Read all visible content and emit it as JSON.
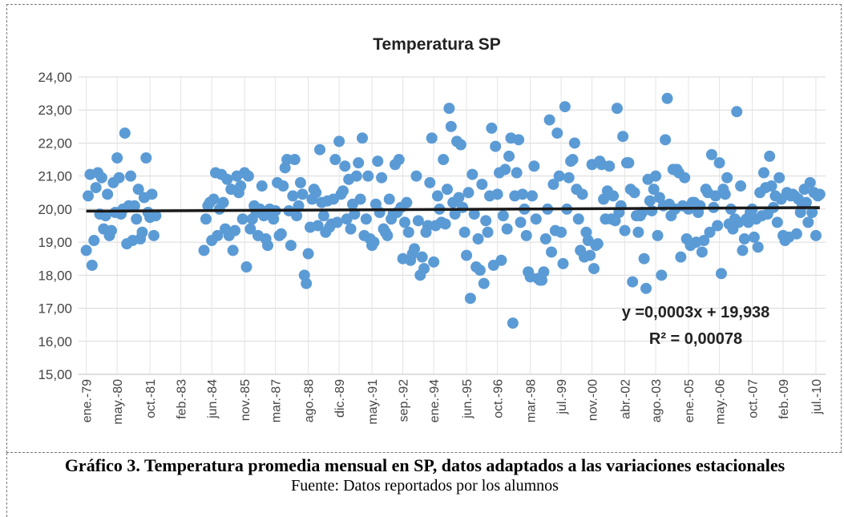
{
  "chart_data": {
    "type": "scatter",
    "title": "Temperatura SP",
    "color": "#5b9bd5",
    "x": [
      0,
      1,
      2,
      3,
      4,
      5,
      6,
      7,
      8,
      9,
      10,
      11,
      12,
      13,
      14,
      15,
      16,
      17,
      18,
      19,
      20,
      21,
      22,
      23,
      24,
      25,
      26,
      27,
      28,
      29,
      30,
      31,
      32,
      33,
      34,
      35,
      36,
      61,
      62,
      63,
      64,
      65,
      66,
      67,
      68,
      69,
      70,
      71,
      72,
      73,
      74,
      75,
      76,
      77,
      78,
      79,
      80,
      81,
      82,
      83,
      84,
      85,
      86,
      87,
      88,
      89,
      90,
      91,
      92,
      93,
      94,
      95,
      96,
      97,
      98,
      99,
      100,
      101,
      102,
      103,
      104,
      105,
      106,
      107,
      108,
      109,
      110,
      111,
      112,
      113,
      114,
      115,
      116,
      117,
      118,
      119,
      120,
      121,
      122,
      123,
      124,
      125,
      126,
      127,
      128,
      129,
      130,
      131,
      132,
      133,
      134,
      135,
      136,
      137,
      138,
      139,
      140,
      141,
      142,
      143,
      144,
      145,
      146,
      147,
      148,
      149,
      150,
      151,
      152,
      153,
      154,
      155,
      156,
      157,
      158,
      159,
      160,
      161,
      162,
      163,
      164,
      165,
      166,
      167,
      168,
      169,
      170,
      171,
      172,
      173,
      174,
      175,
      176,
      177,
      178,
      179,
      180,
      181,
      182,
      183,
      184,
      185,
      186,
      187,
      188,
      189,
      190,
      191,
      192,
      193,
      194,
      195,
      196,
      197,
      198,
      199,
      200,
      201,
      202,
      203,
      204,
      205,
      206,
      207,
      208,
      209,
      210,
      211,
      212,
      213,
      214,
      215,
      216,
      217,
      218,
      219,
      220,
      221,
      222,
      223,
      224,
      225,
      226,
      227,
      228,
      229,
      230,
      231,
      232,
      233,
      234,
      235,
      236,
      237,
      238,
      239,
      240,
      241,
      242,
      243,
      244,
      245,
      246,
      247,
      248,
      249,
      250,
      251,
      252,
      253,
      254,
      255,
      256,
      257,
      258,
      259,
      260,
      261,
      262,
      263,
      264,
      265,
      266,
      267,
      268,
      269,
      270,
      271,
      272,
      273,
      274,
      275,
      276,
      277,
      278,
      279,
      280,
      281,
      282,
      283,
      284,
      285,
      286,
      287,
      288,
      289,
      290,
      291,
      292,
      293,
      294,
      295,
      296,
      297,
      298,
      299,
      300,
      301,
      302,
      303,
      304,
      305,
      306,
      307,
      308,
      309,
      310,
      311,
      312,
      313,
      314,
      315,
      316,
      317,
      318,
      319,
      320,
      321,
      322,
      323,
      324,
      325,
      326,
      327,
      328,
      329,
      330,
      331,
      332,
      333,
      334,
      335,
      336,
      337,
      338,
      339,
      340,
      341,
      342,
      343,
      344,
      345,
      346,
      347,
      348,
      349,
      350,
      351,
      352,
      353,
      354,
      355,
      356,
      357,
      358,
      359,
      360,
      361,
      362,
      363,
      364,
      365,
      366,
      367,
      368,
      369,
      370,
      371,
      372,
      373,
      374,
      375,
      376,
      377,
      378,
      379,
      380
    ],
    "values": [
      18.75,
      20.4,
      21.05,
      18.3,
      19.05,
      20.65,
      21.1,
      19.85,
      20.95,
      19.4,
      19.8,
      20.45,
      19.2,
      19.35,
      20.8,
      19.9,
      21.55,
      20.95,
      19.85,
      20.0,
      22.3,
      18.95,
      20.1,
      21.0,
      19.05,
      20.1,
      19.7,
      20.6,
      19.1,
      19.3,
      20.35,
      21.55,
      19.9,
      19.75,
      20.45,
      19.2,
      19.8,
      18.75,
      19.7,
      20.1,
      20.2,
      19.05,
      20.3,
      21.1,
      19.2,
      20.0,
      21.05,
      20.2,
      19.4,
      20.9,
      19.2,
      20.6,
      18.75,
      19.35,
      21.0,
      20.5,
      20.7,
      19.7,
      21.1,
      18.25,
      21.0,
      19.4,
      19.7,
      20.1,
      19.9,
      19.2,
      20.0,
      20.7,
      19.8,
      19.1,
      18.9,
      20.0,
      19.85,
      19.7,
      19.95,
      20.8,
      19.2,
      19.25,
      20.7,
      21.25,
      21.5,
      19.95,
      18.9,
      20.4,
      21.5,
      19.8,
      20.1,
      20.8,
      20.45,
      18.0,
      17.75,
      18.65,
      19.45,
      20.3,
      20.6,
      20.5,
      19.5,
      21.8,
      20.2,
      19.8,
      19.3,
      20.25,
      19.45,
      19.55,
      20.3,
      21.5,
      19.6,
      22.05,
      20.45,
      20.55,
      21.3,
      19.7,
      20.9,
      19.4,
      20.15,
      19.85,
      21.0,
      21.4,
      20.3,
      22.15,
      19.2,
      19.7,
      21.0,
      19.1,
      18.9,
      19.0,
      20.15,
      21.45,
      19.9,
      20.95,
      19.4,
      19.3,
      19.2,
      20.3,
      19.7,
      19.85,
      21.35,
      19.9,
      21.5,
      20.05,
      18.5,
      19.6,
      20.2,
      19.3,
      18.45,
      18.65,
      18.8,
      21.0,
      19.65,
      18.0,
      18.55,
      18.2,
      19.3,
      19.5,
      20.8,
      22.15,
      18.4,
      19.5,
      20.4,
      20.0,
      19.6,
      21.5,
      19.55,
      20.6,
      23.05,
      22.5,
      20.2,
      19.85,
      22.05,
      20.35,
      21.95,
      20.05,
      19.3,
      18.6,
      20.5,
      17.3,
      21.05,
      19.85,
      18.25,
      19.1,
      18.15,
      20.75,
      17.75,
      19.65,
      19.3,
      20.4,
      22.45,
      18.3,
      21.9,
      20.45,
      21.1,
      18.45,
      19.8,
      21.2,
      19.4,
      21.6,
      22.15,
      16.55,
      20.4,
      21.1,
      22.1,
      19.6,
      20.45,
      20.0,
      19.2,
      18.1,
      17.95,
      20.4,
      21.3,
      19.7,
      17.9,
      17.85,
      17.85,
      18.1,
      19.1,
      20.0,
      22.7,
      18.7,
      20.75,
      19.35,
      22.3,
      21.0,
      19.3,
      18.35,
      23.1,
      20.0,
      20.95,
      21.45,
      21.5,
      22.0,
      20.6,
      19.7,
      18.75,
      20.45,
      18.55,
      19.3,
      19.05,
      18.6,
      21.35,
      18.2,
      18.9,
      18.95,
      21.45,
      21.35,
      20.3,
      19.7,
      20.55,
      21.3,
      19.7,
      20.4,
      19.65,
      23.05,
      19.9,
      20.1,
      22.2,
      19.35,
      21.4,
      21.4,
      20.6,
      17.8,
      20.5,
      19.8,
      19.3,
      19.8,
      19.9,
      18.5,
      17.6,
      20.9,
      20.25,
      19.95,
      20.6,
      21.0,
      19.2,
      20.35,
      18.0,
      20.1,
      22.1,
      23.35,
      20.15,
      19.8,
      21.2,
      20.0,
      21.2,
      21.1,
      18.55,
      20.1,
      20.95,
      19.1,
      20.0,
      18.9,
      20.2,
      20.2,
      19.0,
      19.9,
      20.1,
      18.7,
      19.05,
      20.6,
      20.5,
      19.3,
      21.65,
      20.05,
      20.4,
      19.5,
      21.4,
      18.05,
      20.6,
      20.45,
      20.95,
      19.55,
      20.0,
      19.4,
      19.7,
      22.95,
      19.6,
      20.7,
      18.75,
      19.1,
      19.7,
      19.6,
      19.9,
      20.0,
      19.15,
      19.7,
      18.85,
      20.5,
      19.8,
      21.1,
      20.65,
      19.85,
      21.6,
      20.7,
      20.05,
      20.4,
      19.6,
      20.95,
      20.3,
      19.2,
      19.05,
      20.5,
      19.15,
      20.4,
      20.45,
      20.4,
      19.25,
      20.3,
      19.9,
      20.1,
      20.6,
      20.2,
      19.6,
      20.8,
      19.9,
      20.5,
      19.2,
      20.4,
      20.45
    ],
    "xlim": [
      -4,
      383
    ],
    "xticks": [
      {
        "value": 0,
        "label": "ene.-79"
      },
      {
        "value": 16,
        "label": "may.-80"
      },
      {
        "value": 33,
        "label": "oct.-81"
      },
      {
        "value": 49,
        "label": "feb.-83"
      },
      {
        "value": 65,
        "label": "jun.-84"
      },
      {
        "value": 82,
        "label": "nov.-85"
      },
      {
        "value": 98,
        "label": "mar.-87"
      },
      {
        "value": 115,
        "label": "ago.-88"
      },
      {
        "value": 131,
        "label": "dic.-89"
      },
      {
        "value": 148,
        "label": "may.-91"
      },
      {
        "value": 164,
        "label": "sep.-92"
      },
      {
        "value": 180,
        "label": "ene.-94"
      },
      {
        "value": 197,
        "label": "jun.-95"
      },
      {
        "value": 213,
        "label": "oct.-96"
      },
      {
        "value": 230,
        "label": "mar.-98"
      },
      {
        "value": 246,
        "label": "jul.-99"
      },
      {
        "value": 262,
        "label": "nov.-00"
      },
      {
        "value": 279,
        "label": "abr.-02"
      },
      {
        "value": 295,
        "label": "ago.-03"
      },
      {
        "value": 312,
        "label": "ene.-05"
      },
      {
        "value": 328,
        "label": "may.-06"
      },
      {
        "value": 345,
        "label": "oct.-07"
      },
      {
        "value": 361,
        "label": "feb.-09"
      },
      {
        "value": 378,
        "label": "jul.-10"
      }
    ],
    "ylim": [
      15,
      24
    ],
    "yticks": [
      {
        "value": 15,
        "label": "15,00"
      },
      {
        "value": 16,
        "label": "16,00"
      },
      {
        "value": 17,
        "label": "17,00"
      },
      {
        "value": 18,
        "label": "18,00"
      },
      {
        "value": 19,
        "label": "19,00"
      },
      {
        "value": 20,
        "label": "20,00"
      },
      {
        "value": 21,
        "label": "21,00"
      },
      {
        "value": 22,
        "label": "22,00"
      },
      {
        "value": 23,
        "label": "23,00"
      },
      {
        "value": 24,
        "label": "24,00"
      }
    ],
    "grid": true,
    "trendline": {
      "color": "#1a1a1a",
      "slope": 0.0003,
      "intercept": 19.938,
      "equation": "y =0,0003x + 19,938",
      "r2": "R² = 0,00078"
    }
  },
  "caption": {
    "title": "Gráfico 3. Temperatura promedia mensual en SP, datos adaptados a las variaciones estacionales",
    "source": "Fuente: Datos reportados por los alumnos"
  }
}
